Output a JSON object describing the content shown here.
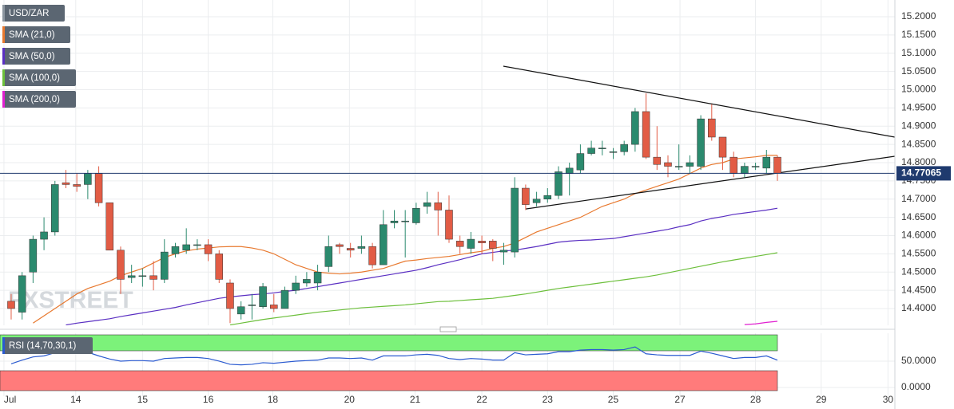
{
  "chart_data": [
    {
      "type": "candlestick",
      "name": "USD/ZAR",
      "color": "#8c96a0",
      "up_color": "#2b8a6e",
      "down_color": "#e25c45",
      "x": [
        0,
        1,
        2,
        3,
        4,
        5,
        6,
        7,
        8,
        9,
        10,
        11,
        12,
        13,
        14,
        15,
        16,
        17,
        18,
        19,
        20,
        21,
        22,
        23,
        24,
        25,
        26,
        27,
        28,
        29,
        30,
        31,
        32,
        33,
        34,
        35,
        36,
        37,
        38,
        39,
        40,
        41,
        42,
        43,
        44,
        45,
        46,
        47,
        48,
        49,
        50,
        51,
        52,
        53,
        54,
        55,
        56,
        57,
        58,
        59,
        60,
        61,
        62,
        63,
        64,
        65,
        66,
        67,
        68,
        69,
        70
      ],
      "open": [
        14.42,
        14.39,
        14.5,
        14.59,
        14.61,
        14.745,
        14.74,
        14.74,
        14.77,
        14.69,
        14.56,
        14.485,
        14.49,
        14.49,
        14.48,
        14.55,
        14.56,
        14.575,
        14.575,
        14.55,
        14.47,
        14.385,
        14.41,
        14.405,
        14.41,
        14.4,
        14.45,
        14.47,
        14.47,
        14.515,
        14.575,
        14.565,
        14.565,
        14.57,
        14.52,
        14.635,
        14.64,
        14.635,
        14.68,
        14.69,
        14.67,
        14.585,
        14.565,
        14.585,
        14.585,
        14.555,
        14.555,
        14.73,
        14.69,
        14.7,
        14.71,
        14.77,
        14.78,
        14.825,
        14.84,
        14.83,
        14.83,
        14.85,
        14.94,
        14.815,
        14.8,
        14.79,
        14.79,
        14.79,
        14.92,
        14.87,
        14.815,
        14.77,
        14.79,
        14.785,
        14.815
      ],
      "high": [
        14.44,
        14.5,
        14.6,
        14.65,
        14.75,
        14.78,
        14.77,
        14.78,
        14.79,
        14.69,
        14.57,
        14.52,
        14.51,
        14.53,
        14.59,
        14.58,
        14.62,
        14.59,
        14.59,
        14.56,
        14.48,
        14.42,
        14.44,
        14.47,
        14.44,
        14.46,
        14.49,
        14.5,
        14.52,
        14.6,
        14.58,
        14.58,
        14.6,
        14.58,
        14.67,
        14.67,
        14.67,
        14.69,
        14.72,
        14.72,
        14.71,
        14.6,
        14.61,
        14.6,
        14.59,
        14.58,
        14.76,
        14.74,
        14.72,
        14.73,
        14.79,
        14.8,
        14.85,
        14.86,
        14.86,
        14.84,
        14.86,
        14.95,
        14.99,
        14.9,
        14.82,
        14.85,
        14.82,
        14.93,
        14.96,
        14.87,
        14.83,
        14.8,
        14.8,
        14.835,
        14.82
      ],
      "low": [
        14.37,
        14.37,
        14.47,
        14.56,
        14.6,
        14.73,
        14.72,
        14.7,
        14.68,
        14.56,
        14.44,
        14.47,
        14.46,
        14.45,
        14.47,
        14.54,
        14.55,
        14.56,
        14.53,
        14.47,
        14.36,
        14.37,
        14.37,
        14.4,
        14.39,
        14.4,
        14.44,
        14.46,
        14.45,
        14.5,
        14.55,
        14.54,
        14.55,
        14.51,
        14.52,
        14.62,
        14.54,
        14.63,
        14.66,
        14.6,
        14.58,
        14.55,
        14.55,
        14.55,
        14.53,
        14.52,
        14.54,
        14.67,
        14.68,
        14.69,
        14.7,
        14.71,
        14.77,
        14.82,
        14.82,
        14.81,
        14.82,
        14.83,
        14.81,
        14.78,
        14.76,
        14.78,
        14.77,
        14.78,
        14.86,
        14.78,
        14.76,
        14.76,
        14.78,
        14.77,
        14.75
      ],
      "close": [
        14.4,
        14.49,
        14.59,
        14.61,
        14.74,
        14.74,
        14.735,
        14.77,
        14.69,
        14.56,
        14.48,
        14.49,
        14.49,
        14.48,
        14.555,
        14.57,
        14.575,
        14.575,
        14.55,
        14.48,
        14.4,
        14.405,
        14.41,
        14.46,
        14.4,
        14.45,
        14.47,
        14.48,
        14.5,
        14.57,
        14.57,
        14.56,
        14.57,
        14.52,
        14.63,
        14.64,
        14.64,
        14.675,
        14.69,
        14.67,
        14.59,
        14.57,
        14.59,
        14.58,
        14.565,
        14.56,
        14.73,
        14.685,
        14.7,
        14.71,
        14.775,
        14.785,
        14.825,
        14.84,
        14.84,
        14.83,
        14.85,
        14.94,
        14.815,
        14.795,
        14.79,
        14.79,
        14.8,
        14.92,
        14.87,
        14.815,
        14.77,
        14.79,
        14.79,
        14.815,
        14.77065
      ],
      "series": [
        {
          "name": "SMA (21,0)",
          "color": "#e8792f",
          "values": [
            null,
            null,
            14.36,
            14.38,
            14.4,
            14.42,
            14.44,
            14.455,
            14.465,
            14.475,
            14.49,
            14.5,
            14.51,
            14.525,
            14.54,
            14.55,
            14.558,
            14.563,
            14.566,
            14.569,
            14.57,
            14.57,
            14.566,
            14.56,
            14.55,
            14.535,
            14.52,
            14.51,
            14.5,
            14.497,
            14.495,
            14.497,
            14.5,
            14.505,
            14.51,
            14.52,
            14.53,
            14.533,
            14.537,
            14.54,
            14.543,
            14.548,
            14.553,
            14.557,
            14.565,
            14.57,
            14.58,
            14.595,
            14.61,
            14.62,
            14.63,
            14.64,
            14.65,
            14.665,
            14.68,
            14.69,
            14.7,
            14.715,
            14.725,
            14.735,
            14.745,
            14.755,
            14.77,
            14.785,
            14.795,
            14.8,
            14.81,
            14.813,
            14.816,
            14.82,
            14.82
          ]
        },
        {
          "name": "SMA (50,0)",
          "color": "#5a2fc2",
          "values": [
            null,
            null,
            null,
            null,
            null,
            14.355,
            14.36,
            14.364,
            14.368,
            14.372,
            14.378,
            14.383,
            14.388,
            14.393,
            14.398,
            14.403,
            14.41,
            14.416,
            14.422,
            14.428,
            14.432,
            14.435,
            14.438,
            14.44,
            14.443,
            14.447,
            14.45,
            14.455,
            14.46,
            14.465,
            14.47,
            14.475,
            14.48,
            14.485,
            14.49,
            14.495,
            14.5,
            14.505,
            14.512,
            14.52,
            14.527,
            14.534,
            14.542,
            14.55,
            14.554,
            14.558,
            14.56,
            14.565,
            14.57,
            14.576,
            14.582,
            14.585,
            14.587,
            14.588,
            14.59,
            14.592,
            14.597,
            14.602,
            14.607,
            14.612,
            14.617,
            14.624,
            14.63,
            14.64,
            14.647,
            14.652,
            14.658,
            14.662,
            14.666,
            14.67,
            14.675
          ]
        },
        {
          "name": "SMA (100,0)",
          "color": "#6cbf3b",
          "values": [
            null,
            null,
            null,
            null,
            null,
            null,
            null,
            null,
            null,
            null,
            null,
            null,
            null,
            null,
            null,
            null,
            null,
            null,
            null,
            null,
            14.355,
            14.36,
            14.365,
            14.37,
            14.374,
            14.378,
            14.382,
            14.386,
            14.39,
            14.393,
            14.396,
            14.399,
            14.402,
            14.404,
            14.406,
            14.408,
            14.41,
            14.413,
            14.416,
            14.419,
            14.42,
            14.422,
            14.424,
            14.426,
            14.428,
            14.432,
            14.436,
            14.44,
            14.445,
            14.45,
            14.455,
            14.459,
            14.463,
            14.467,
            14.471,
            14.475,
            14.479,
            14.483,
            14.487,
            14.492,
            14.498,
            14.504,
            14.51,
            14.516,
            14.522,
            14.528,
            14.533,
            14.538,
            14.543,
            14.548,
            14.553
          ]
        },
        {
          "name": "SMA (200,0)",
          "color": "#e020d0",
          "values": [
            null,
            null,
            null,
            null,
            null,
            null,
            null,
            null,
            null,
            null,
            null,
            null,
            null,
            null,
            null,
            null,
            null,
            null,
            null,
            null,
            null,
            null,
            null,
            null,
            null,
            null,
            null,
            null,
            null,
            null,
            null,
            null,
            null,
            null,
            null,
            null,
            null,
            null,
            null,
            null,
            null,
            null,
            null,
            null,
            null,
            null,
            null,
            null,
            null,
            null,
            null,
            null,
            null,
            null,
            null,
            null,
            null,
            null,
            null,
            null,
            null,
            null,
            null,
            null,
            null,
            null,
            null,
            14.356,
            14.358,
            14.362,
            14.365
          ]
        }
      ],
      "trendlines": [
        {
          "x": [
            44.96,
            80.73
          ],
          "y": [
            15.0645,
            14.87
          ]
        },
        {
          "x": [
            47,
            80.73
          ],
          "y": [
            14.673,
            14.8175
          ]
        }
      ],
      "last_price": 14.77065,
      "watermark": "FXSTREET",
      "xlim": [
        -1.02,
        80.73
      ],
      "ylim": [
        14.3541,
        15.2459
      ],
      "yticks": [
        {
          "value": 14.4,
          "label": "14.4000"
        },
        {
          "value": 14.45,
          "label": "14.4500"
        },
        {
          "value": 14.5,
          "label": "14.5000"
        },
        {
          "value": 14.55,
          "label": "14.5500"
        },
        {
          "value": 14.6,
          "label": "14.6000"
        },
        {
          "value": 14.65,
          "label": "14.6500"
        },
        {
          "value": 14.7,
          "label": "14.7000"
        },
        {
          "value": 14.75,
          "label": "14.7500"
        },
        {
          "value": 14.8,
          "label": "14.8000"
        },
        {
          "value": 14.85,
          "label": "14.8500"
        },
        {
          "value": 14.9,
          "label": "14.9000"
        },
        {
          "value": 14.95,
          "label": "14.9500"
        },
        {
          "value": 15.0,
          "label": "15.0000"
        },
        {
          "value": 15.05,
          "label": "15.0500"
        },
        {
          "value": 15.1,
          "label": "15.1000"
        },
        {
          "value": 15.15,
          "label": "15.1500"
        },
        {
          "value": 15.2,
          "label": "15.2000"
        }
      ],
      "grid": true
    },
    {
      "type": "line",
      "x": [
        0,
        1,
        2,
        3,
        4,
        5,
        6,
        7,
        8,
        9,
        10,
        11,
        12,
        13,
        14,
        15,
        16,
        17,
        18,
        19,
        20,
        21,
        22,
        23,
        24,
        25,
        26,
        27,
        28,
        29,
        30,
        31,
        32,
        33,
        34,
        35,
        36,
        37,
        38,
        39,
        40,
        41,
        42,
        43,
        44,
        45,
        46,
        47,
        48,
        49,
        50,
        51,
        52,
        53,
        54,
        55,
        56,
        57,
        58,
        59,
        60,
        61,
        62,
        63,
        64,
        65,
        66,
        67,
        68,
        69,
        70
      ],
      "series": [
        {
          "name": "RSI (14,70,30,1)",
          "color": "#2a5ad0",
          "values": [
            45,
            52,
            58,
            60,
            66,
            66,
            65,
            67,
            60,
            54,
            50,
            51,
            51,
            50,
            55,
            56,
            57,
            57,
            55,
            50,
            44,
            43,
            44,
            47,
            46,
            48,
            50,
            51,
            52,
            56,
            56,
            55,
            56,
            52,
            60,
            60,
            60,
            62,
            63,
            61,
            55,
            53,
            55,
            54,
            52,
            52,
            66,
            62,
            63,
            64,
            68,
            68,
            71,
            72,
            72,
            71,
            72,
            77,
            64,
            62,
            61,
            61,
            61,
            69,
            65,
            60,
            55,
            57,
            57,
            60,
            52
          ]
        }
      ],
      "xlim": [
        -1.02,
        80.73
      ],
      "ylim": [
        -16.7,
        103
      ],
      "yticks": [
        {
          "value": 0,
          "label": "0.0000"
        },
        {
          "value": 50,
          "label": "50.0000"
        }
      ],
      "xticks": [
        {
          "value": -0.66,
          "label": "Jul"
        },
        {
          "value": 5.9,
          "label": "14"
        },
        {
          "value": 12.0,
          "label": "15"
        },
        {
          "value": 18.0,
          "label": "16"
        },
        {
          "value": 23.9,
          "label": "18"
        },
        {
          "value": 30.9,
          "label": "20"
        },
        {
          "value": 36.9,
          "label": "21"
        },
        {
          "value": 43.0,
          "label": "22"
        },
        {
          "value": 49.0,
          "label": "23"
        },
        {
          "value": 55.0,
          "label": "25"
        },
        {
          "value": 61.1,
          "label": "27"
        },
        {
          "value": 68.0,
          "label": "28"
        },
        {
          "value": 74.0,
          "label": "29"
        },
        {
          "value": 80.1,
          "label": "30"
        }
      ],
      "grid": true
    }
  ]
}
